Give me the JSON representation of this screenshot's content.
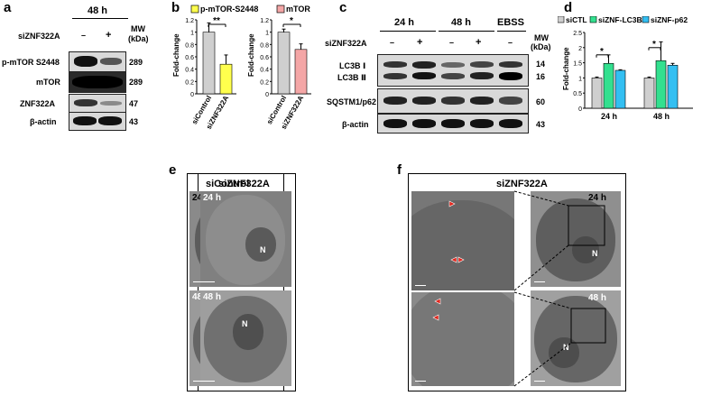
{
  "panels": {
    "a": {
      "letter": "a",
      "timepoint": "48 h",
      "treatment_label": "siZNF322A",
      "treatment_states": [
        "–",
        "+"
      ],
      "mw_header": [
        "MW",
        "(kDa)"
      ],
      "rows": [
        {
          "name": "p-mTOR S2448",
          "mw": "289"
        },
        {
          "name": "mTOR",
          "mw": "289"
        },
        {
          "name": "ZNF322A",
          "mw": "47"
        },
        {
          "name": "β-actin",
          "mw": "43"
        }
      ]
    },
    "b": {
      "letter": "b"
    },
    "c": {
      "letter": "c",
      "timepoints": [
        "24 h",
        "48 h",
        "EBSS"
      ],
      "treatment_label": "siZNF322A",
      "treatment_states": [
        "–",
        "+",
        "–",
        "+",
        "–"
      ],
      "mw_header": [
        "MW",
        "(kDa)"
      ],
      "rows": [
        {
          "name": "LC3B Ⅰ",
          "mw": "14"
        },
        {
          "name": "LC3B Ⅱ",
          "mw": "16"
        },
        {
          "name": "SQSTM1/p62",
          "mw": "60"
        },
        {
          "name": "β-actin",
          "mw": "43"
        }
      ]
    },
    "d": {
      "letter": "d"
    },
    "e": {
      "letter": "e",
      "columns": [
        "siControl",
        "siZNF322A"
      ],
      "time_labels": [
        "24 h",
        "48 h"
      ],
      "nucleus_label": "N",
      "scale_label": "2 µm"
    },
    "f": {
      "letter": "f",
      "title": "siZNF322A",
      "time_labels": [
        "24 h",
        "48 h"
      ],
      "nucleus_label": "N",
      "scale_label": "2 µm",
      "arrow_color": "#e0241b"
    }
  },
  "chart_data": [
    {
      "type": "bar",
      "panel": "b-left",
      "categories": [
        "siControl",
        "siZNF322A"
      ],
      "series": [
        {
          "name": "p-mTOR-S2448",
          "values": [
            1.0,
            0.48
          ]
        }
      ],
      "errors": [
        0.15,
        0.15
      ],
      "colors": [
        "#cfcfcf",
        "#ffff4d"
      ],
      "ylabel": "Fold-change",
      "ylim": [
        0,
        1.2
      ],
      "yticks": [
        "0",
        "0.2",
        "0.4",
        "0.6",
        "0.8",
        "1",
        "1.2"
      ],
      "significance": "**",
      "legend": "p-mTOR-S2448",
      "legend_color": "#ffff4d"
    },
    {
      "type": "bar",
      "panel": "b-right",
      "categories": [
        "siControl",
        "siZNF322A"
      ],
      "series": [
        {
          "name": "mTOR",
          "values": [
            1.0,
            0.72
          ]
        }
      ],
      "errors": [
        0.05,
        0.09
      ],
      "colors": [
        "#cfcfcf",
        "#f4a6a6"
      ],
      "ylabel": "Fold-change",
      "ylim": [
        0,
        1.2
      ],
      "yticks": [
        "0",
        "0.2",
        "0.4",
        "0.6",
        "0.8",
        "1",
        "1.2"
      ],
      "significance": "*",
      "legend": "mTOR",
      "legend_color": "#f4a6a6"
    },
    {
      "type": "bar",
      "panel": "d",
      "categories": [
        "24 h",
        "48 h"
      ],
      "series": [
        {
          "name": "siCTL",
          "values": [
            1.0,
            1.0
          ],
          "errors": [
            0.03,
            0.03
          ],
          "color": "#cfcfcf"
        },
        {
          "name": "siZNF-LC3B",
          "values": [
            1.48,
            1.57
          ],
          "errors": [
            0.28,
            0.62
          ],
          "color": "#33e08f"
        },
        {
          "name": "siZNF-p62",
          "values": [
            1.25,
            1.42
          ],
          "errors": [
            0.02,
            0.06
          ],
          "color": "#33bff2"
        }
      ],
      "ylabel": "Fold-change",
      "ylim": [
        0,
        2.5
      ],
      "yticks": [
        "0",
        "0.5",
        "1",
        "1.5",
        "2",
        "2.5"
      ],
      "significance": [
        "*",
        "*"
      ]
    }
  ]
}
